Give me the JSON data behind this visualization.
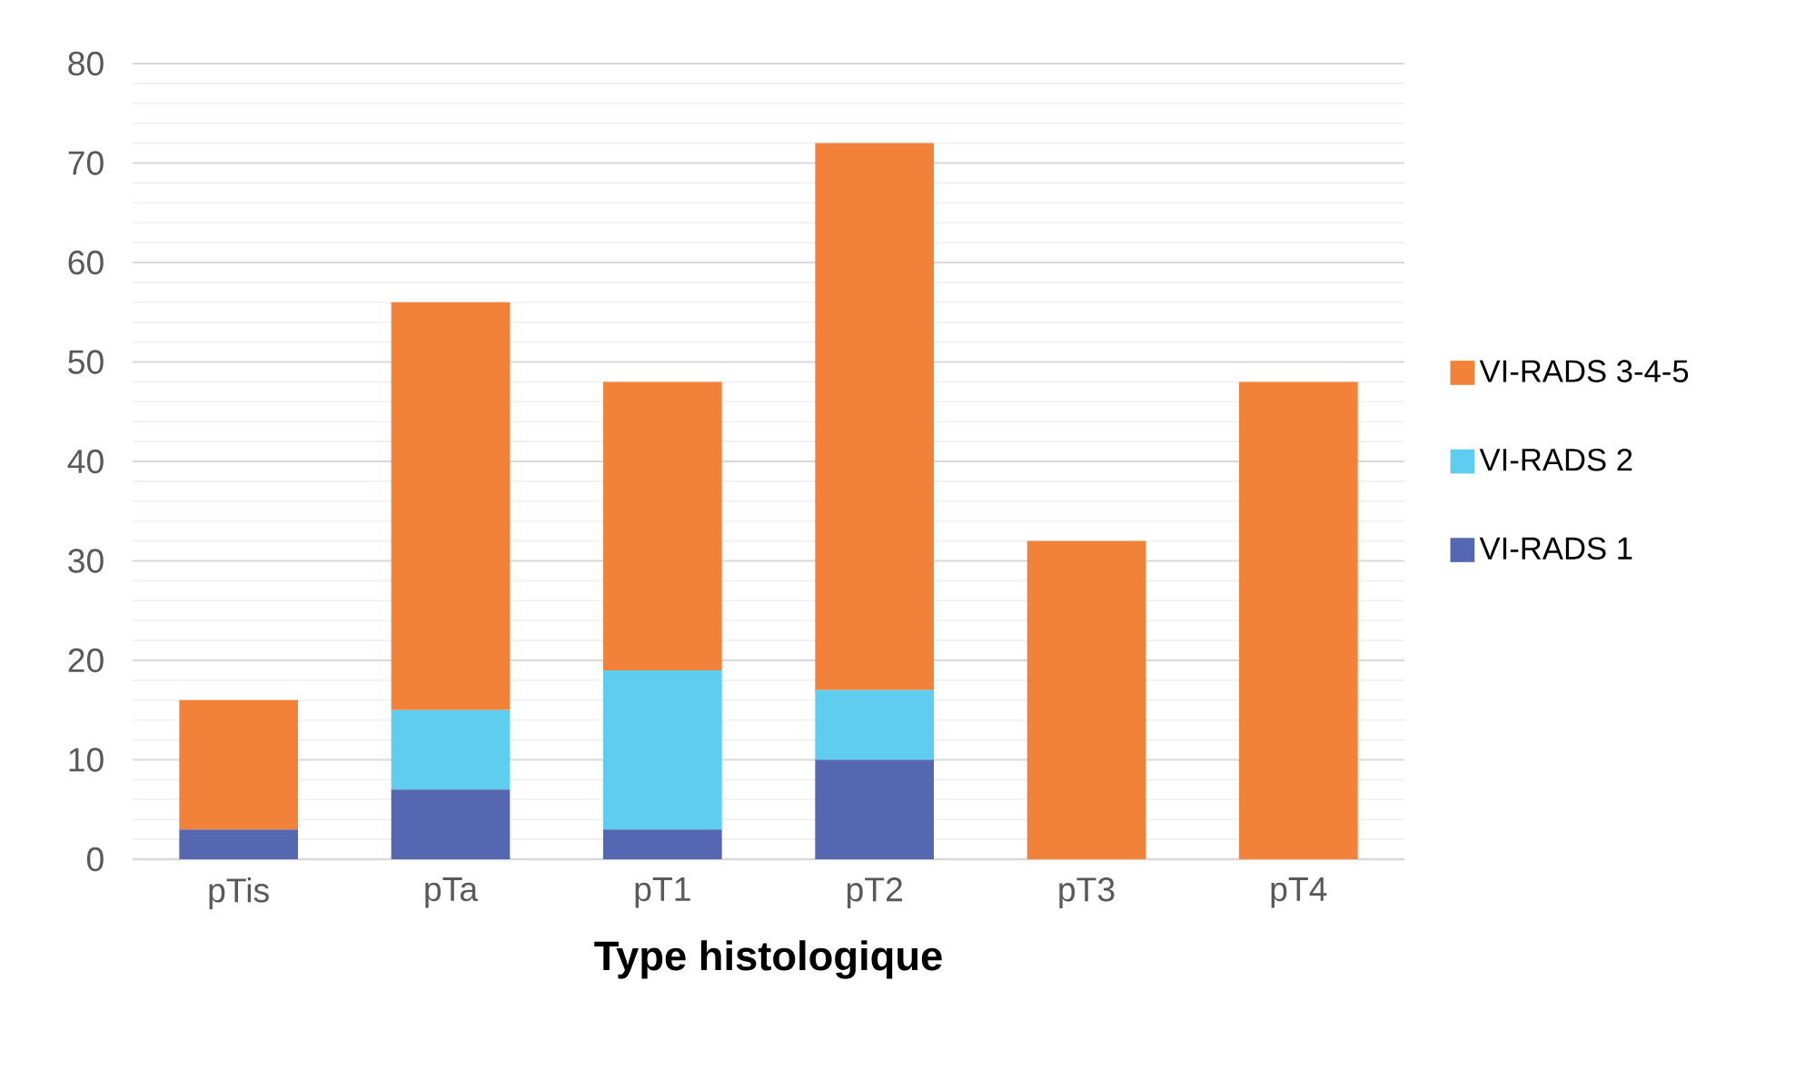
{
  "chart_data": {
    "type": "bar",
    "stacked": true,
    "xlabel": "Type histologique",
    "categories": [
      "pTis",
      "pTa",
      "pT1",
      "pT2",
      "pT3",
      "pT4"
    ],
    "series": [
      {
        "name": "VI-RADS 1",
        "color": "#5567b0",
        "values": [
          3,
          7,
          3,
          10,
          0,
          0
        ]
      },
      {
        "name": "VI-RADS 2",
        "color": "#5fcdf0",
        "values": [
          0,
          8,
          16,
          7,
          0,
          0
        ]
      },
      {
        "name": "VI-RADS 3-4-5",
        "color": "#f2823a",
        "values": [
          13,
          41,
          29,
          55,
          32,
          48
        ]
      }
    ],
    "ylim": [
      0,
      80
    ],
    "yticks": [
      0,
      10,
      20,
      30,
      40,
      50,
      60,
      70,
      80
    ],
    "grid": "y",
    "legend": "right"
  }
}
